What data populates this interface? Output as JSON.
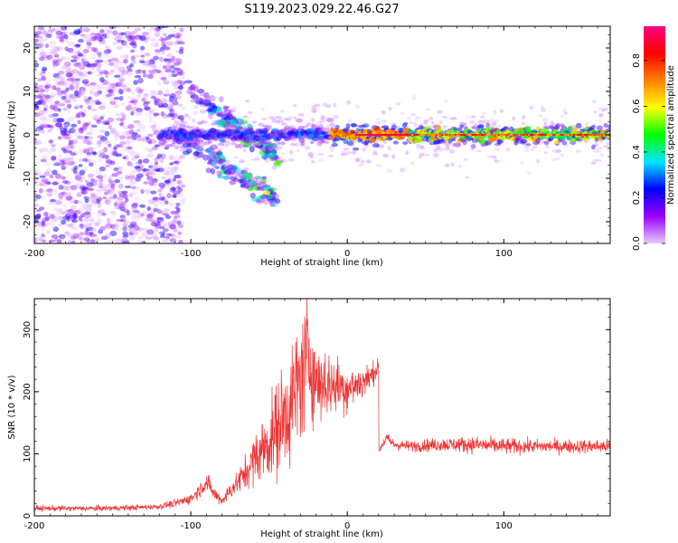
{
  "figure": {
    "title": "S119.2023.029.22.46.G27"
  },
  "chart_data": [
    {
      "type": "heatmap",
      "xlabel": "Height of straight line (km)",
      "ylabel": "Frequency (Hz)",
      "xlim": [
        -200,
        168
      ],
      "ylim": [
        -25,
        25
      ],
      "xticks": [
        -200,
        -100,
        0,
        100
      ],
      "xtick_labels": [
        "-200",
        "-100",
        "0",
        "100"
      ],
      "yticks": [
        -20,
        -10,
        0,
        10,
        20
      ],
      "ytick_labels": [
        "-20",
        "-10",
        "0",
        "10",
        "20"
      ],
      "colorbar": {
        "label": "Normalized spectral amplitude",
        "range": [
          0,
          0.95
        ],
        "ticks": [
          0.0,
          0.2,
          0.4,
          0.6,
          0.8
        ],
        "tick_labels": [
          "0.0",
          "0.2",
          "0.4",
          "0.6",
          "0.8"
        ],
        "colors": [
          "#e6ccff",
          "#9900ff",
          "#0000ff",
          "#00e5ff",
          "#00ff00",
          "#ffff00",
          "#ff8000",
          "#ff0000",
          "#ff0080"
        ]
      },
      "features": [
        {
          "name": "zero-line",
          "x": [
            -120,
            168
          ],
          "y": [
            0,
            0
          ],
          "amplitude_peak": 0.85
        },
        {
          "name": "upper-branch",
          "x": [
            -100,
            -45
          ],
          "y": [
            10,
            -5
          ]
        },
        {
          "name": "lower-branch",
          "x": [
            -110,
            -45
          ],
          "y": [
            0,
            -15
          ]
        }
      ]
    },
    {
      "type": "line",
      "xlabel": "Height of straight line (km)",
      "ylabel": "SNR (10 * v/v)",
      "xlim": [
        -200,
        168
      ],
      "ylim": [
        0,
        350
      ],
      "xticks": [
        -200,
        -100,
        0,
        100
      ],
      "xtick_labels": [
        "-200",
        "-100",
        "0",
        "100"
      ],
      "yticks": [
        0,
        100,
        200,
        300
      ],
      "ytick_labels": [
        "0",
        "100",
        "200",
        "300"
      ],
      "series": [
        {
          "color": "#ee3333",
          "x": [
            -200,
            -180,
            -160,
            -140,
            -120,
            -110,
            -100,
            -95,
            -90,
            -85,
            -80,
            -75,
            -70,
            -65,
            -60,
            -55,
            -50,
            -45,
            -40,
            -35,
            -30,
            -25,
            -20,
            -15,
            -10,
            -5,
            0,
            5,
            10,
            15,
            18,
            20,
            21,
            25,
            30,
            40,
            60,
            80,
            100,
            120,
            140,
            168
          ],
          "y": [
            12,
            12,
            12,
            13,
            15,
            20,
            28,
            40,
            55,
            35,
            25,
            40,
            55,
            70,
            90,
            105,
            120,
            140,
            165,
            185,
            220,
            260,
            215,
            215,
            210,
            210,
            205,
            210,
            215,
            225,
            235,
            240,
            110,
            125,
            115,
            112,
            115,
            115,
            112,
            112,
            112,
            112
          ],
          "noise": [
            4,
            4,
            4,
            4,
            4,
            6,
            8,
            10,
            14,
            10,
            8,
            12,
            18,
            25,
            35,
            45,
            55,
            70,
            80,
            90,
            100,
            85,
            60,
            55,
            45,
            40,
            35,
            30,
            25,
            20,
            15,
            10,
            8,
            8,
            8,
            8,
            10,
            12,
            12,
            10,
            10,
            10
          ]
        }
      ]
    }
  ]
}
